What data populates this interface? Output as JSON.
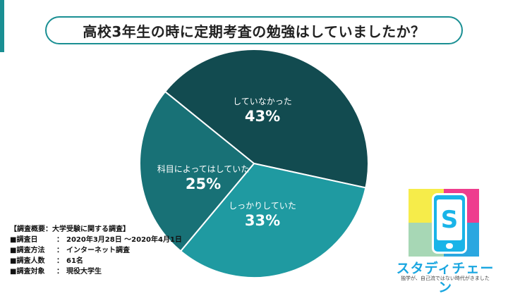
{
  "chart_data": {
    "type": "pie",
    "title": "高校3年生の時に定期考査の勉強はしていましたか？",
    "slices": [
      {
        "label": "していなかった",
        "value": 43,
        "value_label": "43%",
        "color": "#124b50"
      },
      {
        "label": "しっかりしていた",
        "value": 33,
        "value_label": "33%",
        "color": "#1f9aa1"
      },
      {
        "label": "科目によってはしていた",
        "value": 25,
        "value_label": "25%",
        "color": "#187176"
      }
    ]
  },
  "survey": {
    "heading": "【調査概要：大学受験に関する調査】",
    "rows": [
      {
        "key": "■調査日",
        "value": "2020年3月28日 〜2020年4月1日"
      },
      {
        "key": "■調査方法",
        "value": "インターネット調査"
      },
      {
        "key": "■調査人数",
        "value": "61名"
      },
      {
        "key": "■調査対象",
        "value": "現役大学生"
      }
    ],
    "separator": "："
  },
  "logo": {
    "name": "スタディチェーン",
    "tagline": "独学が、自己流ではない時代がきました",
    "mark": "S"
  },
  "colors": {
    "accent": "#1a8f93"
  }
}
